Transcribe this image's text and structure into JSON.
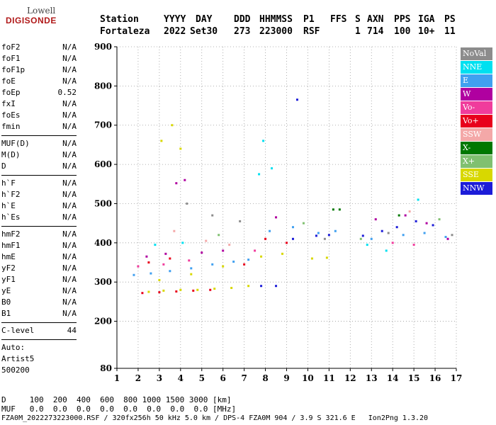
{
  "logo": {
    "line1": "Lowell",
    "line2": "DIGISONDE"
  },
  "header": {
    "labels": [
      "Station",
      "YYYY",
      "DAY",
      "DDD",
      "HHMMSS",
      "P1",
      "FFS",
      "S",
      "AXN",
      "PPS",
      "IGA",
      "PS"
    ],
    "values": [
      "Fortaleza",
      "2022",
      "Set30",
      "273",
      "223000",
      "RSF",
      "",
      "1",
      "714",
      "100",
      "10+",
      "11"
    ]
  },
  "params": [
    [
      {
        "name": "foF2",
        "value": "N/A"
      },
      {
        "name": "foF1",
        "value": "N/A"
      },
      {
        "name": "foF1p",
        "value": "N/A"
      },
      {
        "name": "foE",
        "value": "N/A"
      },
      {
        "name": "foEp",
        "value": "0.52"
      },
      {
        "name": "fxI",
        "value": "N/A"
      },
      {
        "name": "foEs",
        "value": "N/A"
      },
      {
        "name": "fmin",
        "value": "N/A"
      }
    ],
    [
      {
        "name": "MUF(D)",
        "value": "N/A"
      },
      {
        "name": "M(D)",
        "value": "N/A"
      },
      {
        "name": "D",
        "value": "N/A"
      }
    ],
    [
      {
        "name": "h`F",
        "value": "N/A"
      },
      {
        "name": "h`F2",
        "value": "N/A"
      },
      {
        "name": "h`E",
        "value": "N/A"
      },
      {
        "name": "h`Es",
        "value": "N/A"
      }
    ],
    [
      {
        "name": "hmF2",
        "value": "N/A"
      },
      {
        "name": "hmF1",
        "value": "N/A"
      },
      {
        "name": "hmE",
        "value": "N/A"
      },
      {
        "name": "yF2",
        "value": "N/A"
      },
      {
        "name": "yF1",
        "value": "N/A"
      },
      {
        "name": "yE",
        "value": "N/A"
      },
      {
        "name": "B0",
        "value": "N/A"
      },
      {
        "name": "B1",
        "value": "N/A"
      }
    ],
    [
      {
        "name": "C-level",
        "value": "44"
      }
    ]
  ],
  "auto": {
    "label": "Auto:",
    "artist": "Artist5",
    "code": "500200"
  },
  "footer": {
    "d_row": "D     100  200  400  600  800 1000 1500 3000 [km]",
    "muf_row": "MUF   0.0  0.0  0.0  0.0  0.0  0.0  0.0  0.0 [MHz]",
    "file_row": "FZA0M_2022273223000.RSF / 320fx256h 50 kHz 5.0 km / DPS-4 FZA0M 904 / 3.9 S 321.6 E   Ion2Png 1.3.20"
  },
  "legend": [
    {
      "label": "NoVal",
      "color": "#8c8c8c"
    },
    {
      "label": "NNE",
      "color": "#00e0f0"
    },
    {
      "label": "E",
      "color": "#40a0f0"
    },
    {
      "label": "W",
      "color": "#b000a0"
    },
    {
      "label": "Vo-",
      "color": "#f03c9c"
    },
    {
      "label": "Vo+",
      "color": "#e8001c"
    },
    {
      "label": "SSW",
      "color": "#f4a8a8"
    },
    {
      "label": "X-",
      "color": "#007800"
    },
    {
      "label": "X+",
      "color": "#80c070"
    },
    {
      "label": "SSE",
      "color": "#d8d800"
    },
    {
      "label": "NNW",
      "color": "#1c1cd8"
    }
  ],
  "chart_data": {
    "type": "scatter",
    "xlabel": "",
    "ylabel": "",
    "xlim": [
      1,
      17
    ],
    "ylim": [
      80,
      900
    ],
    "x_ticks": [
      1,
      2,
      3,
      4,
      5,
      6,
      7,
      8,
      9,
      10,
      11,
      12,
      13,
      14,
      15,
      16,
      17
    ],
    "y_ticks": [
      80,
      200,
      300,
      400,
      500,
      600,
      700,
      800,
      900
    ],
    "grid": true,
    "series": [
      {
        "name": "SSE",
        "color": "#d8d800",
        "points": [
          [
            2.5,
            275
          ],
          [
            3.2,
            278
          ],
          [
            4,
            280
          ],
          [
            4.8,
            280
          ],
          [
            5.6,
            283
          ],
          [
            6.4,
            285
          ],
          [
            7.2,
            290
          ],
          [
            3,
            305
          ],
          [
            4.5,
            320
          ],
          [
            6,
            340
          ],
          [
            7.8,
            365
          ],
          [
            8.8,
            372
          ],
          [
            10.2,
            360
          ],
          [
            10.9,
            362
          ],
          [
            3.1,
            660
          ],
          [
            4,
            640
          ],
          [
            3.6,
            700
          ]
        ]
      },
      {
        "name": "E",
        "color": "#40a0f0",
        "points": [
          [
            1.8,
            318
          ],
          [
            2.6,
            322
          ],
          [
            3.5,
            328
          ],
          [
            4.5,
            335
          ],
          [
            5.5,
            345
          ],
          [
            6.5,
            352
          ],
          [
            7.2,
            357
          ],
          [
            8.2,
            430
          ],
          [
            9.3,
            440
          ],
          [
            10.5,
            425
          ],
          [
            11.3,
            430
          ],
          [
            13,
            410
          ],
          [
            14.5,
            420
          ],
          [
            15.5,
            425
          ],
          [
            16.5,
            415
          ]
        ]
      },
      {
        "name": "Vo+",
        "color": "#e8001c",
        "points": [
          [
            2.2,
            272
          ],
          [
            3,
            274
          ],
          [
            3.8,
            276
          ],
          [
            4.6,
            278
          ],
          [
            5.4,
            280
          ],
          [
            2.5,
            350
          ],
          [
            3.5,
            360
          ],
          [
            7,
            345
          ],
          [
            8,
            410
          ],
          [
            9,
            400
          ]
        ]
      },
      {
        "name": "W",
        "color": "#b000a0",
        "points": [
          [
            2.4,
            365
          ],
          [
            3.3,
            372
          ],
          [
            3.8,
            552
          ],
          [
            4.2,
            560
          ],
          [
            5,
            375
          ],
          [
            6,
            380
          ],
          [
            8.5,
            465
          ],
          [
            13.2,
            460
          ],
          [
            14.6,
            470
          ],
          [
            15.6,
            450
          ],
          [
            16.6,
            410
          ]
        ]
      },
      {
        "name": "NNE",
        "color": "#00e0f0",
        "points": [
          [
            2.8,
            395
          ],
          [
            4.1,
            400
          ],
          [
            7.7,
            575
          ],
          [
            7.9,
            660
          ],
          [
            8.3,
            590
          ],
          [
            12.8,
            395
          ],
          [
            13.7,
            380
          ],
          [
            15.2,
            510
          ]
        ]
      },
      {
        "name": "NNW",
        "color": "#1c1cd8",
        "points": [
          [
            7.8,
            290
          ],
          [
            8.5,
            290
          ],
          [
            9.3,
            410
          ],
          [
            10.4,
            418
          ],
          [
            11,
            420
          ],
          [
            12.6,
            418
          ],
          [
            13.5,
            430
          ],
          [
            14.2,
            440
          ],
          [
            15.1,
            455
          ],
          [
            15.9,
            445
          ],
          [
            9.5,
            765
          ]
        ]
      },
      {
        "name": "Vo-",
        "color": "#f03c9c",
        "points": [
          [
            2,
            340
          ],
          [
            3.2,
            345
          ],
          [
            4.4,
            355
          ],
          [
            7.5,
            380
          ],
          [
            14,
            400
          ],
          [
            15,
            395
          ]
        ]
      },
      {
        "name": "SSW",
        "color": "#f4a8a8",
        "points": [
          [
            3.7,
            430
          ],
          [
            5.2,
            405
          ],
          [
            6.3,
            395
          ],
          [
            14.8,
            480
          ]
        ]
      },
      {
        "name": "X+",
        "color": "#80c070",
        "points": [
          [
            5.8,
            420
          ],
          [
            9.8,
            450
          ],
          [
            12.5,
            410
          ],
          [
            16.2,
            460
          ]
        ]
      },
      {
        "name": "X-",
        "color": "#007800",
        "points": [
          [
            11.2,
            485
          ],
          [
            11.5,
            485
          ],
          [
            14.3,
            470
          ]
        ]
      },
      {
        "name": "NoVal",
        "color": "#8c8c8c",
        "points": [
          [
            4.3,
            500
          ],
          [
            5.5,
            470
          ],
          [
            6.8,
            455
          ],
          [
            10.8,
            410
          ],
          [
            13.8,
            425
          ],
          [
            16.8,
            420
          ]
        ]
      }
    ]
  }
}
